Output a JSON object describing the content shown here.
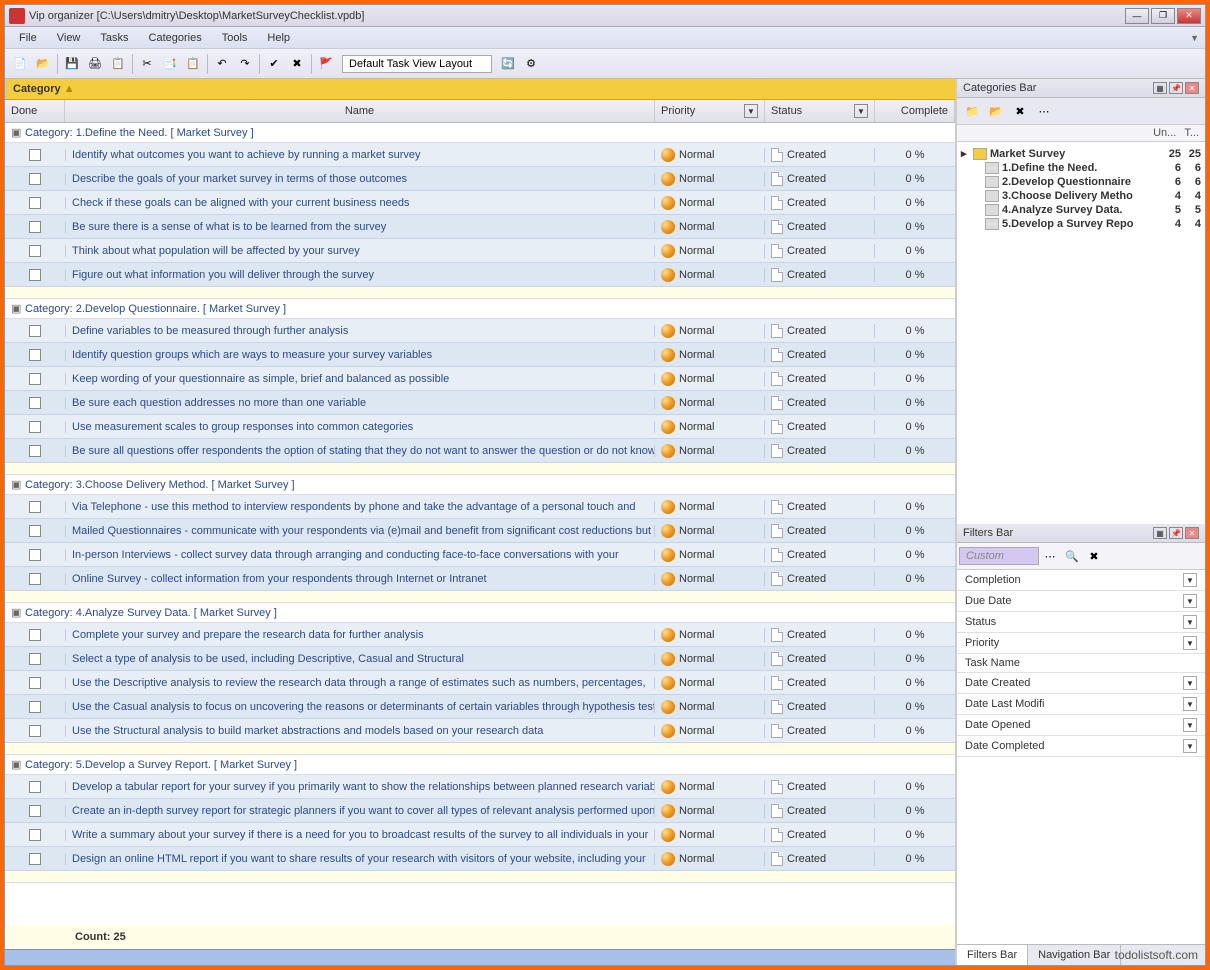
{
  "window": {
    "title": "Vip organizer [C:\\Users\\dmitry\\Desktop\\MarketSurveyChecklist.vpdb]"
  },
  "menu": [
    "File",
    "View",
    "Tasks",
    "Categories",
    "Tools",
    "Help"
  ],
  "toolbar": {
    "layout_label": "Default Task View Layout"
  },
  "grid": {
    "group_label": "Category",
    "headers": {
      "done": "Done",
      "name": "Name",
      "priority": "Priority",
      "status": "Status",
      "complete": "Complete"
    },
    "default_priority": "Normal",
    "default_status": "Created",
    "default_complete": "0 %",
    "categories": [
      {
        "title": "Category: 1.Define the Need.   [ Market Survey ]",
        "tasks": [
          "Identify what outcomes you want to achieve by running a market survey",
          "Describe the goals of your market survey in terms of those outcomes",
          "Check if these goals can be aligned with your current business needs",
          "Be sure there is a sense of what is to be learned from the survey",
          "Think about what population will be affected by your survey",
          "Figure out what information you will deliver through the survey"
        ]
      },
      {
        "title": "Category: 2.Develop Questionnaire.   [ Market Survey ]",
        "tasks": [
          "Define variables to be measured through further analysis",
          "Identify question groups which are ways to measure your survey variables",
          "Keep wording of your questionnaire as simple, brief and balanced as possible",
          "Be sure each question addresses no more than one variable",
          "Use measurement scales to group responses into common categories",
          "Be sure all questions offer respondents the option of stating that they do not want to answer the question or do not know"
        ]
      },
      {
        "title": "Category: 3.Choose Delivery Method.   [ Market Survey ]",
        "tasks": [
          "Via Telephone - use this method to interview respondents by phone and take the advantage of a personal touch and",
          "Mailed Questionnaires - communicate with your respondents via (e)mail and benefit from significant cost reductions but be",
          "In-person Interviews - collect survey data through arranging and conducting face-to-face conversations with your",
          "Online Survey - collect information from your respondents through Internet or Intranet"
        ]
      },
      {
        "title": "Category: 4.Analyze Survey Data.   [ Market Survey ]",
        "tasks": [
          "Complete your survey and prepare the research data for further analysis",
          "Select a type of analysis to be used, including Descriptive, Casual and Structural",
          "Use the Descriptive analysis to review the research data through a range of estimates such as numbers, percentages,",
          "Use the Casual analysis to focus on uncovering the reasons or determinants of certain variables through hypothesis testing,",
          "Use the Structural analysis to build market abstractions and models based on your research data"
        ]
      },
      {
        "title": "Category: 5.Develop a Survey Report.   [ Market Survey ]",
        "tasks": [
          "Develop a tabular report for your survey if you primarily want to show the relationships between planned research variables",
          "Create an in-depth survey report for strategic planners if you want to cover all types of relevant analysis performed upon the",
          "Write a summary about your survey if there is a need for you to broadcast results of the survey to all individuals in your",
          "Design an online HTML report if you want to share results of your research with visitors of your website, including your"
        ]
      }
    ],
    "footer": "Count: 25"
  },
  "cat_panel": {
    "title": "Categories Bar",
    "cols": {
      "un": "Un...",
      "t": "T..."
    },
    "root": {
      "label": "Market Survey",
      "un": "25",
      "t": "25"
    },
    "items": [
      {
        "label": "1.Define the Need.",
        "un": "6",
        "t": "6"
      },
      {
        "label": "2.Develop Questionnaire",
        "un": "6",
        "t": "6"
      },
      {
        "label": "3.Choose Delivery Metho",
        "un": "4",
        "t": "4"
      },
      {
        "label": "4.Analyze Survey Data.",
        "un": "5",
        "t": "5"
      },
      {
        "label": "5.Develop a Survey Repo",
        "un": "4",
        "t": "4"
      }
    ]
  },
  "filters_panel": {
    "title": "Filters Bar",
    "selected": "Custom",
    "rows": [
      {
        "label": "Completion",
        "dd": true
      },
      {
        "label": "Due Date",
        "dd": true
      },
      {
        "label": "Status",
        "dd": true
      },
      {
        "label": "Priority",
        "dd": true
      },
      {
        "label": "Task Name",
        "dd": false
      },
      {
        "label": "Date Created",
        "dd": true
      },
      {
        "label": "Date Last Modifi",
        "dd": true
      },
      {
        "label": "Date Opened",
        "dd": true
      },
      {
        "label": "Date Completed",
        "dd": true
      }
    ]
  },
  "bottom_tabs": [
    "Filters Bar",
    "Navigation Bar"
  ],
  "watermark": "todolistsoft.com"
}
